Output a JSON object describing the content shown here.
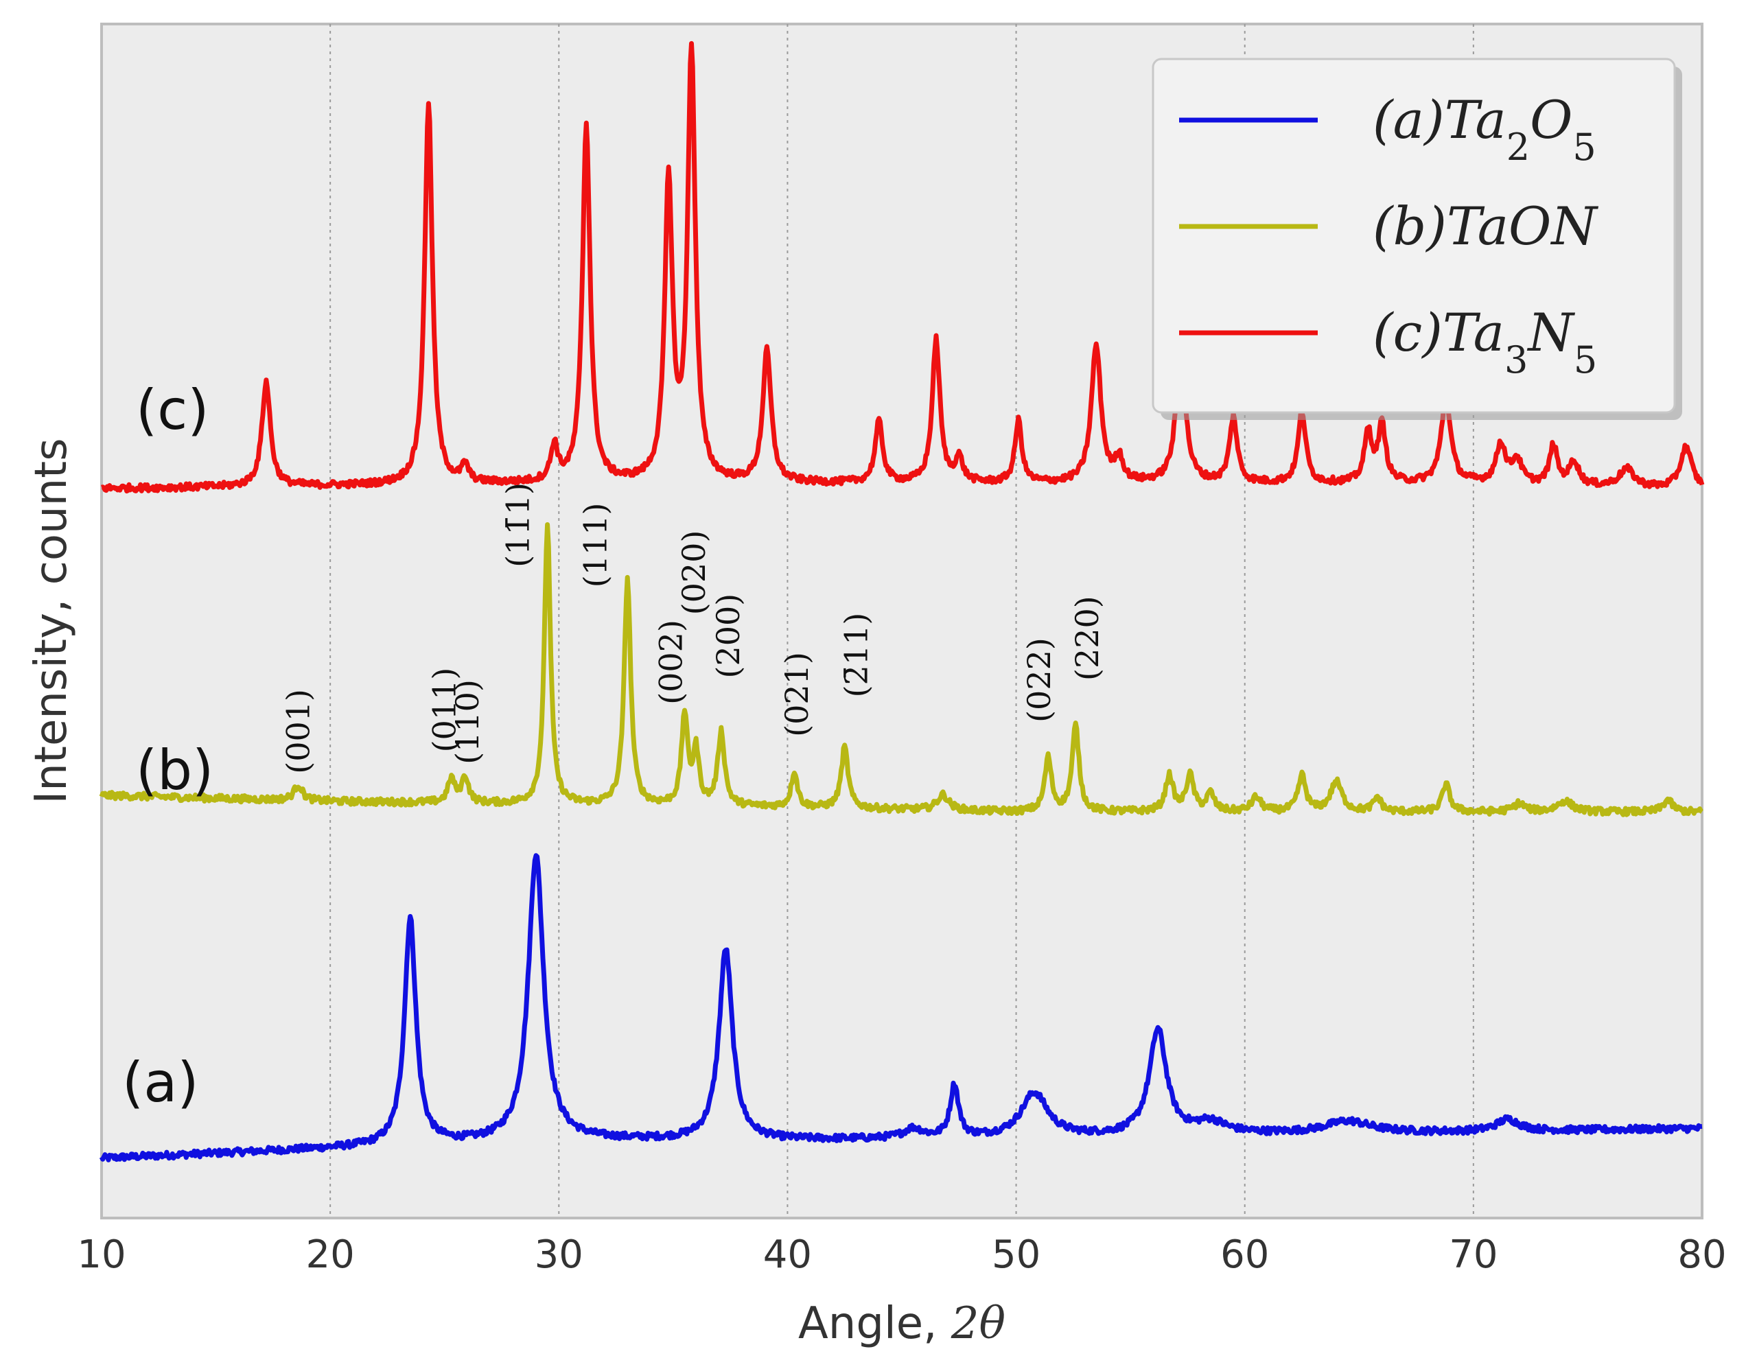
{
  "chart_data": {
    "type": "line",
    "xlabel": "Angle, 2θ",
    "ylabel": "Intensity, counts",
    "xlim": [
      10,
      80
    ],
    "ylim": [
      0,
      100
    ],
    "x_ticks": [
      10,
      20,
      30,
      40,
      50,
      60,
      70,
      80
    ],
    "x_tick_labels": [
      "10",
      "20",
      "30",
      "40",
      "50",
      "60",
      "70",
      "80"
    ],
    "grid": "vertical dotted",
    "legend_position": "top-right",
    "colors": {
      "a": "#1010e0",
      "b": "#b8b814",
      "c": "#ee1111"
    },
    "series": [
      {
        "id": "a",
        "name": "(a)Ta2O5",
        "legend": {
          "pre": "(a)Ta",
          "sub1": "2",
          "mid": "O",
          "sub2": "5"
        },
        "curve_label": "(a)",
        "baseline": [
          [
            10,
            5.0
          ],
          [
            20,
            5.8
          ],
          [
            30,
            6.5
          ],
          [
            40,
            6.5
          ],
          [
            50,
            6.7
          ],
          [
            60,
            7.0
          ],
          [
            70,
            7.2
          ],
          [
            80,
            7.5
          ]
        ],
        "peaks": [
          {
            "x": 23.5,
            "h": 19.0,
            "w": 0.3
          },
          {
            "x": 29.0,
            "h": 24.0,
            "w": 0.4
          },
          {
            "x": 37.3,
            "h": 16.0,
            "w": 0.35
          },
          {
            "x": 45.5,
            "h": 0.8,
            "w": 0.5
          },
          {
            "x": 47.3,
            "h": 4.4,
            "w": 0.22
          },
          {
            "x": 50.8,
            "h": 3.7,
            "w": 0.7
          },
          {
            "x": 56.2,
            "h": 8.8,
            "w": 0.45
          },
          {
            "x": 58.5,
            "h": 1.0,
            "w": 0.8
          },
          {
            "x": 64.5,
            "h": 1.0,
            "w": 1.2
          },
          {
            "x": 71.5,
            "h": 1.0,
            "w": 0.6
          }
        ]
      },
      {
        "id": "b",
        "name": "(b)TaON",
        "legend": {
          "pre": "(b)TaON",
          "sub1": "",
          "mid": "",
          "sub2": ""
        },
        "curve_label": "(b)",
        "baseline": [
          [
            10,
            35.4
          ],
          [
            20,
            34.9
          ],
          [
            30,
            34.6
          ],
          [
            40,
            34.4
          ],
          [
            50,
            34.0
          ],
          [
            60,
            34.0
          ],
          [
            70,
            34.0
          ],
          [
            80,
            34.0
          ]
        ],
        "peaks": [
          {
            "x": 18.6,
            "h": 1.3,
            "w": 0.22
          },
          {
            "x": 25.3,
            "h": 2.0,
            "w": 0.18
          },
          {
            "x": 25.9,
            "h": 2.2,
            "w": 0.18
          },
          {
            "x": 29.5,
            "h": 23.5,
            "w": 0.16
          },
          {
            "x": 33.0,
            "h": 19.0,
            "w": 0.17
          },
          {
            "x": 35.5,
            "h": 7.6,
            "w": 0.16
          },
          {
            "x": 36.0,
            "h": 4.5,
            "w": 0.16
          },
          {
            "x": 37.1,
            "h": 6.2,
            "w": 0.18
          },
          {
            "x": 40.3,
            "h": 3.0,
            "w": 0.16
          },
          {
            "x": 42.5,
            "h": 5.1,
            "w": 0.18
          },
          {
            "x": 46.8,
            "h": 1.3,
            "w": 0.3
          },
          {
            "x": 51.4,
            "h": 4.5,
            "w": 0.18
          },
          {
            "x": 52.6,
            "h": 7.2,
            "w": 0.18
          },
          {
            "x": 56.7,
            "h": 3.0,
            "w": 0.2
          },
          {
            "x": 57.6,
            "h": 3.0,
            "w": 0.2
          },
          {
            "x": 58.5,
            "h": 1.5,
            "w": 0.2
          },
          {
            "x": 60.5,
            "h": 1.2,
            "w": 0.25
          },
          {
            "x": 62.5,
            "h": 3.0,
            "w": 0.2
          },
          {
            "x": 64.0,
            "h": 2.5,
            "w": 0.3
          },
          {
            "x": 65.8,
            "h": 1.2,
            "w": 0.2
          },
          {
            "x": 68.8,
            "h": 2.3,
            "w": 0.2
          },
          {
            "x": 72.0,
            "h": 0.7,
            "w": 0.3
          },
          {
            "x": 74.0,
            "h": 0.9,
            "w": 0.4
          },
          {
            "x": 78.5,
            "h": 1.0,
            "w": 0.25
          }
        ]
      },
      {
        "id": "c",
        "name": "(c)Ta3N5",
        "legend": {
          "pre": "(c)Ta",
          "sub1": "3",
          "mid": "N",
          "sub2": "5"
        },
        "curve_label": "(c)",
        "baseline": [
          [
            10,
            61.1
          ],
          [
            20,
            61.3
          ],
          [
            30,
            61.5
          ],
          [
            40,
            61.5
          ],
          [
            50,
            61.5
          ],
          [
            60,
            61.5
          ],
          [
            70,
            61.5
          ],
          [
            80,
            61.0
          ]
        ],
        "peaks": [
          {
            "x": 17.2,
            "h": 8.8,
            "w": 0.22
          },
          {
            "x": 24.3,
            "h": 32.0,
            "w": 0.2
          },
          {
            "x": 25.9,
            "h": 1.4,
            "w": 0.18
          },
          {
            "x": 29.8,
            "h": 3.0,
            "w": 0.18
          },
          {
            "x": 31.2,
            "h": 30.0,
            "w": 0.2
          },
          {
            "x": 34.8,
            "h": 25.0,
            "w": 0.2
          },
          {
            "x": 35.8,
            "h": 36.0,
            "w": 0.2
          },
          {
            "x": 39.1,
            "h": 11.0,
            "w": 0.22
          },
          {
            "x": 44.0,
            "h": 5.1,
            "w": 0.2
          },
          {
            "x": 46.5,
            "h": 12.0,
            "w": 0.2
          },
          {
            "x": 47.5,
            "h": 2.0,
            "w": 0.2
          },
          {
            "x": 50.1,
            "h": 5.2,
            "w": 0.18
          },
          {
            "x": 53.5,
            "h": 11.5,
            "w": 0.25
          },
          {
            "x": 54.5,
            "h": 2.0,
            "w": 0.2
          },
          {
            "x": 57.2,
            "h": 11.0,
            "w": 0.25
          },
          {
            "x": 59.5,
            "h": 5.5,
            "w": 0.2
          },
          {
            "x": 62.5,
            "h": 6.0,
            "w": 0.2
          },
          {
            "x": 65.4,
            "h": 4.2,
            "w": 0.2
          },
          {
            "x": 66.0,
            "h": 4.8,
            "w": 0.2
          },
          {
            "x": 68.8,
            "h": 7.2,
            "w": 0.25
          },
          {
            "x": 71.2,
            "h": 3.3,
            "w": 0.25
          },
          {
            "x": 71.9,
            "h": 2.0,
            "w": 0.25
          },
          {
            "x": 73.5,
            "h": 3.3,
            "w": 0.2
          },
          {
            "x": 74.4,
            "h": 2.0,
            "w": 0.25
          },
          {
            "x": 76.7,
            "h": 1.5,
            "w": 0.4
          },
          {
            "x": 79.3,
            "h": 3.5,
            "w": 0.3
          }
        ]
      }
    ],
    "peak_annotations": [
      {
        "text": "(001)",
        "x": 18.6,
        "y": 37.2
      },
      {
        "text": "(011)",
        "x": 25.0,
        "y": 39.0
      },
      {
        "text": "(110)",
        "x": 26.0,
        "y": 38.0
      },
      {
        "text": "(11̄1)",
        "x": 28.2,
        "y": 54.5
      },
      {
        "text": "(111)",
        "x": 31.6,
        "y": 52.8
      },
      {
        "text": "(002)",
        "x": 34.9,
        "y": 43.0
      },
      {
        "text": "(020)",
        "x": 35.9,
        "y": 50.5
      },
      {
        "text": "(200)",
        "x": 37.4,
        "y": 45.2
      },
      {
        "text": "(021)",
        "x": 40.4,
        "y": 40.3
      },
      {
        "text": "(2̄11)",
        "x": 43.0,
        "y": 43.6
      },
      {
        "text": "(022)",
        "x": 51.0,
        "y": 41.5
      },
      {
        "text": "(220)",
        "x": 53.1,
        "y": 45.0
      }
    ]
  }
}
